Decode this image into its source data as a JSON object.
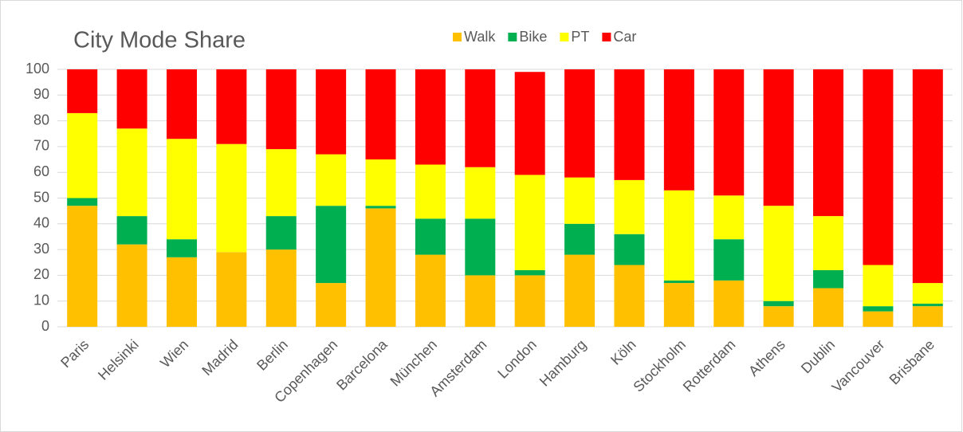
{
  "chart_data": {
    "type": "stacked_bar",
    "title": "City Mode Share",
    "categories": [
      "Paris",
      "Helsinki",
      "Wien",
      "Madrid",
      "Berlin",
      "Copenhagen",
      "Barcelona",
      "München",
      "Amsterdam",
      "London",
      "Hamburg",
      "Köln",
      "Stockholm",
      "Rotterdam",
      "Athens",
      "Dublin",
      "Vancouver",
      "Brisbane"
    ],
    "series": [
      {
        "name": "Walk",
        "color": "#ffc000",
        "values": [
          47,
          32,
          27,
          29,
          30,
          17,
          46,
          28,
          20,
          20,
          28,
          24,
          17,
          18,
          8,
          15,
          6,
          8
        ]
      },
      {
        "name": "Bike",
        "color": "#00b050",
        "values": [
          3,
          11,
          7,
          0,
          13,
          30,
          1,
          14,
          22,
          2,
          12,
          12,
          1,
          16,
          2,
          7,
          2,
          1
        ]
      },
      {
        "name": "PT",
        "color": "#ffff00",
        "values": [
          33,
          34,
          39,
          42,
          26,
          20,
          18,
          21,
          20,
          37,
          18,
          21,
          35,
          17,
          37,
          21,
          16,
          8
        ]
      },
      {
        "name": "Car",
        "color": "#ff0000",
        "values": [
          17,
          23,
          27,
          29,
          31,
          33,
          35,
          37,
          38,
          40,
          42,
          43,
          47,
          49,
          53,
          57,
          76,
          83
        ]
      }
    ],
    "ylim": [
      0,
      100
    ],
    "yticks": [
      0,
      10,
      20,
      30,
      40,
      50,
      60,
      70,
      80,
      90,
      100
    ],
    "grid": true,
    "legend": "top"
  }
}
